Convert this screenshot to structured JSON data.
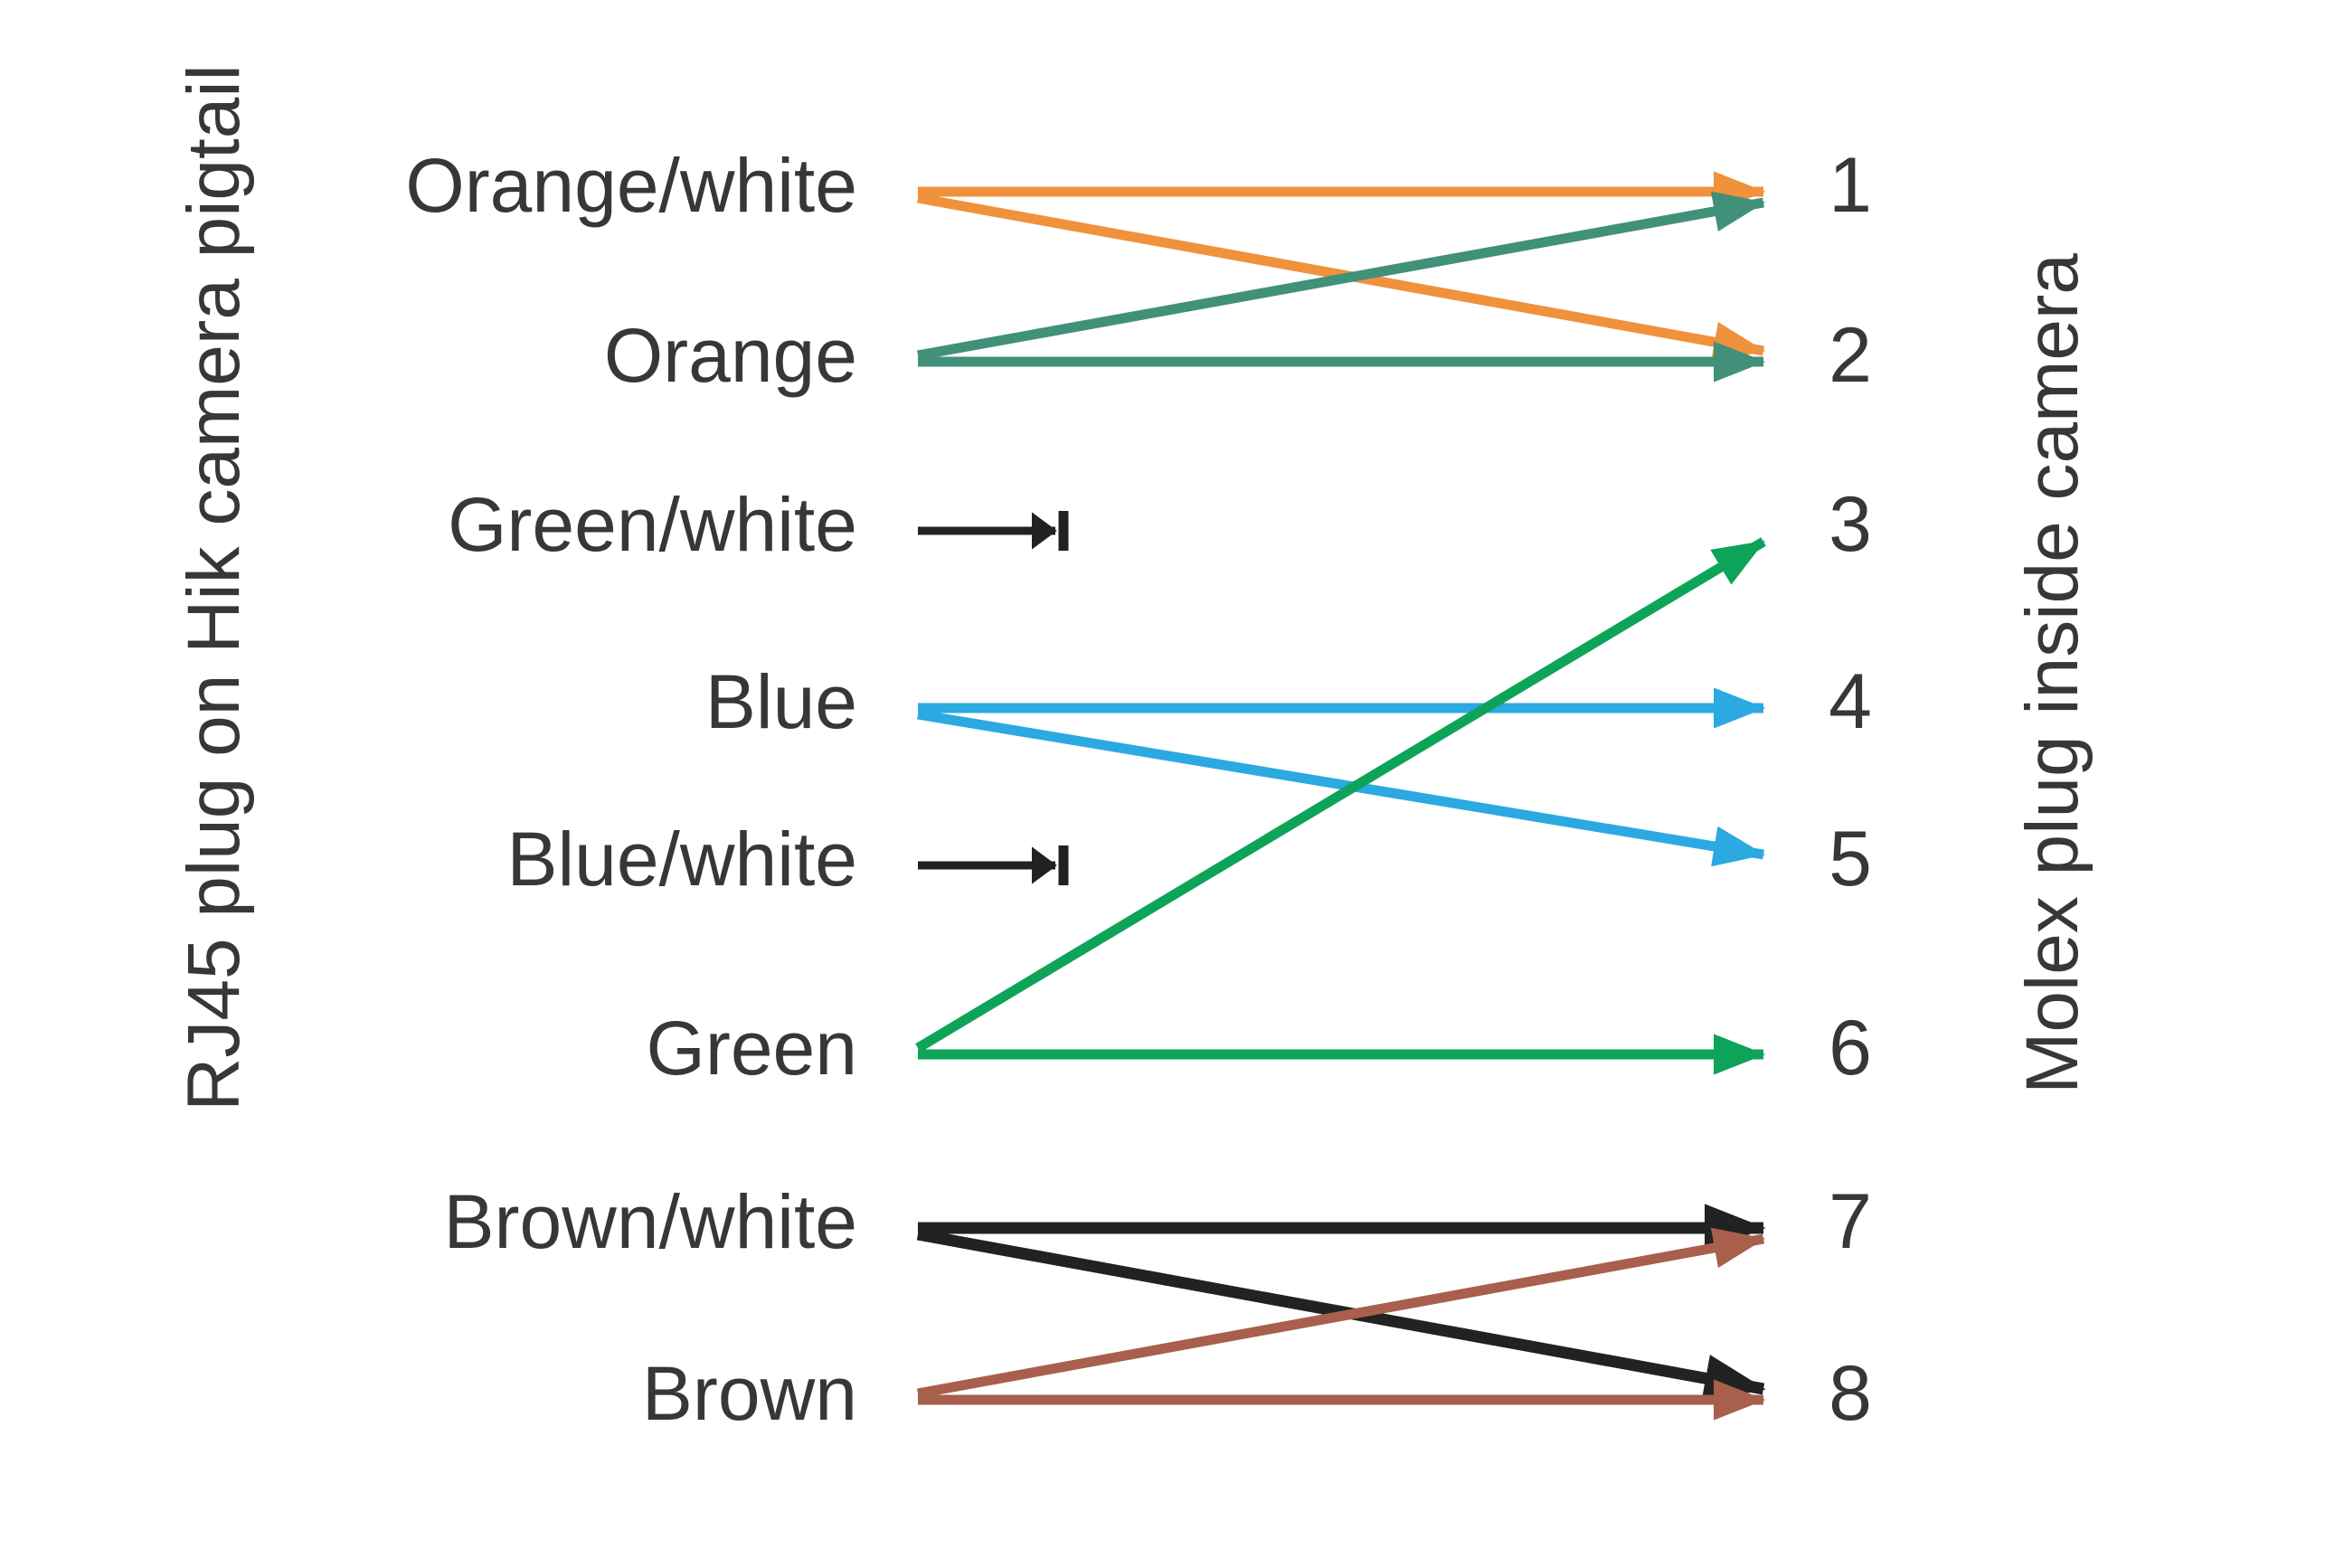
{
  "left_header": "RJ45 plug on Hik camera pigtail",
  "right_header": "Molex plug inside camera",
  "colors": {
    "orange": "#F0913C",
    "teal": "#41907A",
    "blue": "#2BA9E1",
    "green": "#0DA45A",
    "black": "#222222",
    "brown": "#A85F4C"
  },
  "text_color": "#373737",
  "rows": [
    {
      "label": "Orange/white"
    },
    {
      "label": "Orange"
    },
    {
      "label": "Green/white"
    },
    {
      "label": "Blue"
    },
    {
      "label": "Blue/white"
    },
    {
      "label": "Green"
    },
    {
      "label": "Brown/white"
    },
    {
      "label": "Brown"
    }
  ],
  "pins": [
    "1",
    "2",
    "3",
    "4",
    "5",
    "6",
    "7",
    "8"
  ],
  "chart_data": {
    "type": "diagram-mapping",
    "title_left": "RJ45 plug on Hik camera pigtail",
    "title_right": "Molex plug inside camera",
    "connections": [
      {
        "from": "Orange/white",
        "to": 1,
        "color": "orange",
        "terminated": false
      },
      {
        "from": "Orange/white",
        "to": 2,
        "color": "orange",
        "terminated": false
      },
      {
        "from": "Orange",
        "to": 1,
        "color": "teal",
        "terminated": false
      },
      {
        "from": "Orange",
        "to": 2,
        "color": "teal",
        "terminated": false
      },
      {
        "from": "Green/white",
        "to": null,
        "color": "black",
        "terminated": true
      },
      {
        "from": "Blue",
        "to": 4,
        "color": "blue",
        "terminated": false
      },
      {
        "from": "Blue",
        "to": 5,
        "color": "blue",
        "terminated": false
      },
      {
        "from": "Blue/white",
        "to": null,
        "color": "black",
        "terminated": true
      },
      {
        "from": "Green",
        "to": 3,
        "color": "green",
        "terminated": false
      },
      {
        "from": "Green",
        "to": 6,
        "color": "green",
        "terminated": false
      },
      {
        "from": "Brown/white",
        "to": 7,
        "color": "black",
        "terminated": false
      },
      {
        "from": "Brown/white",
        "to": 8,
        "color": "black",
        "terminated": false
      },
      {
        "from": "Brown",
        "to": 7,
        "color": "brown",
        "terminated": false
      },
      {
        "from": "Brown",
        "to": 8,
        "color": "brown",
        "terminated": false
      }
    ]
  }
}
